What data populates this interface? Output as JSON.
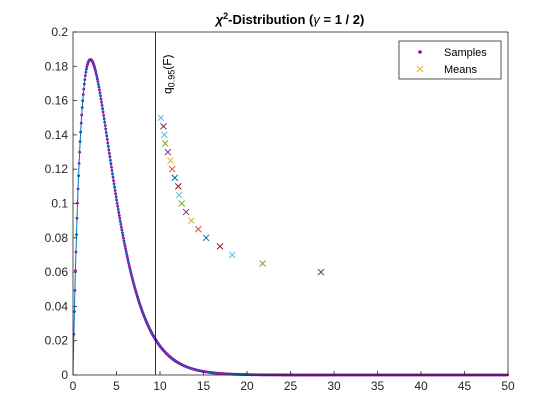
{
  "chart_data": {
    "type": "line",
    "title": {
      "main": "χ",
      "sup": "2",
      "rest1": "-Distribution (",
      "gamma": "γ",
      "rest2": " = 1 / 2)"
    },
    "xlabel": "",
    "ylabel": "",
    "xlim": [
      0,
      50
    ],
    "ylim": [
      0,
      0.2
    ],
    "xticks": [
      0,
      5,
      10,
      15,
      20,
      25,
      30,
      35,
      40,
      45,
      50
    ],
    "yticks": [
      0,
      0.02,
      0.04,
      0.06,
      0.08,
      0.1,
      0.12,
      0.14,
      0.16,
      0.18,
      0.2
    ],
    "xtick_labels": [
      "0",
      "5",
      "10",
      "15",
      "20",
      "25",
      "30",
      "35",
      "40",
      "45",
      "50"
    ],
    "ytick_labels": [
      "0",
      "0.02",
      "0.04",
      "0.06",
      "0.08",
      "0.1",
      "0.12",
      "0.14",
      "0.16",
      "0.18",
      "0.2"
    ],
    "grid": false,
    "legend": {
      "placement": "top-right",
      "entries": [
        {
          "label": "Samples",
          "marker": "dot",
          "color": "#a000a0"
        },
        {
          "label": "Means",
          "marker": "x",
          "color": "#edb120"
        }
      ]
    },
    "density_curve": {
      "distribution": "chi-square",
      "dof": 4,
      "color": "#0072bd"
    },
    "samples": {
      "color": "#9b00a0",
      "x_min": 0.1,
      "x_max": 50
    },
    "quantile_line": {
      "x": 9.49,
      "label_base": "q",
      "label_sub": "0.95",
      "label_rest": "(F)"
    },
    "means": [
      {
        "x": 10.1,
        "y": 0.15,
        "color": "#4dbeee"
      },
      {
        "x": 10.4,
        "y": 0.145,
        "color": "#a2142f"
      },
      {
        "x": 10.5,
        "y": 0.14,
        "color": "#4dbeee"
      },
      {
        "x": 10.6,
        "y": 0.135,
        "color": "#77ac30"
      },
      {
        "x": 10.9,
        "y": 0.13,
        "color": "#7e2f8e"
      },
      {
        "x": 11.2,
        "y": 0.125,
        "color": "#edb120"
      },
      {
        "x": 11.4,
        "y": 0.12,
        "color": "#d95319"
      },
      {
        "x": 11.7,
        "y": 0.115,
        "color": "#0072bd"
      },
      {
        "x": 12.1,
        "y": 0.11,
        "color": "#a2142f"
      },
      {
        "x": 12.2,
        "y": 0.105,
        "color": "#4dbeee"
      },
      {
        "x": 12.5,
        "y": 0.1,
        "color": "#77ac30"
      },
      {
        "x": 13.0,
        "y": 0.095,
        "color": "#7e2f8e"
      },
      {
        "x": 13.6,
        "y": 0.09,
        "color": "#edb120"
      },
      {
        "x": 14.4,
        "y": 0.085,
        "color": "#d95319"
      },
      {
        "x": 15.3,
        "y": 0.08,
        "color": "#0072bd"
      },
      {
        "x": 16.9,
        "y": 0.075,
        "color": "#a2142f"
      },
      {
        "x": 18.3,
        "y": 0.07,
        "color": "#4dbeee"
      },
      {
        "x": 21.8,
        "y": 0.065,
        "color": "#77ac30"
      },
      {
        "x": 28.5,
        "y": 0.06,
        "color": "#7e2f8e"
      }
    ]
  }
}
